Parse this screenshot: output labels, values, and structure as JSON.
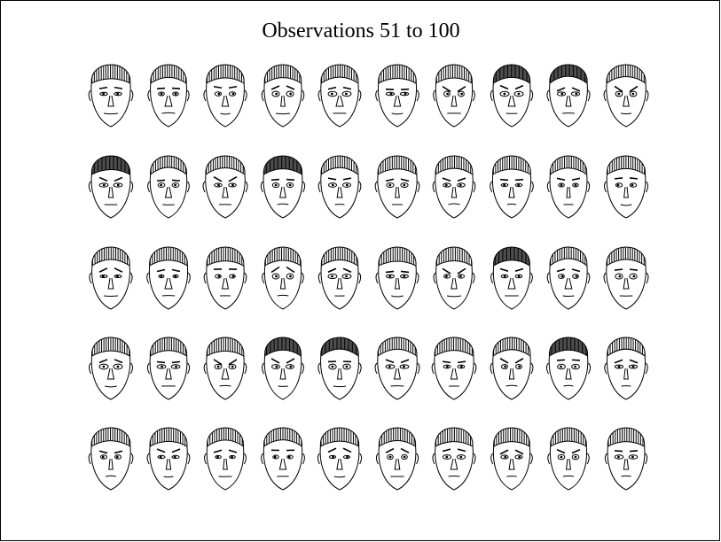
{
  "title": "Observations 51 to 100"
}
